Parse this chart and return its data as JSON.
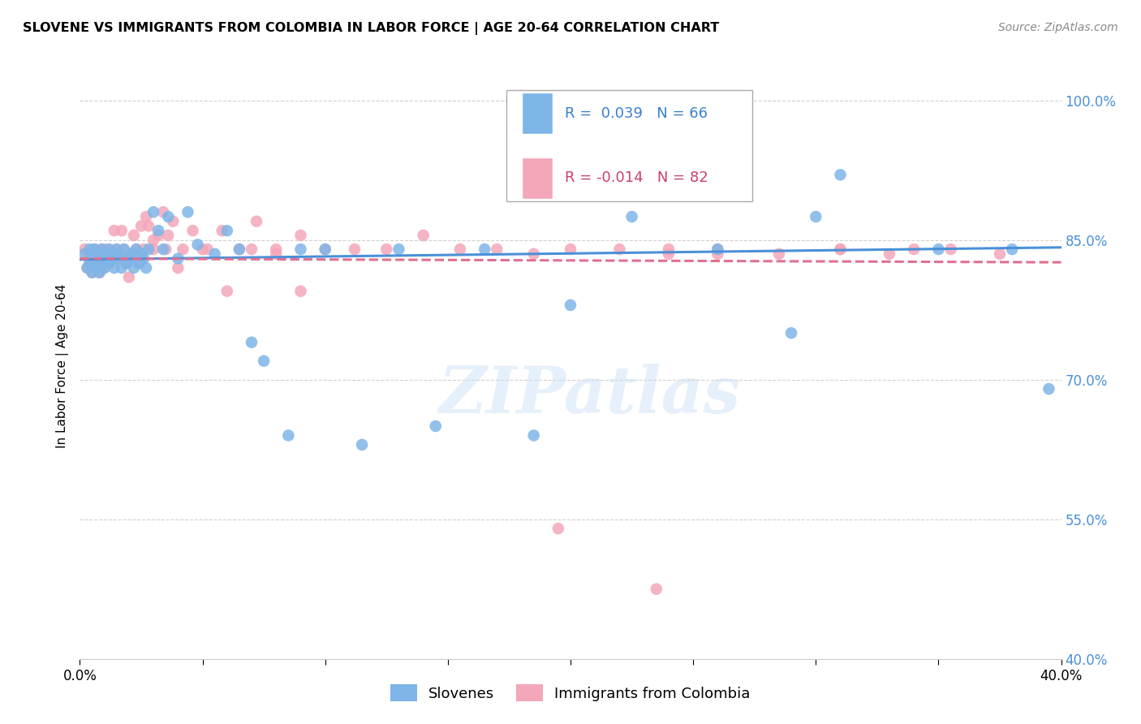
{
  "title": "SLOVENE VS IMMIGRANTS FROM COLOMBIA IN LABOR FORCE | AGE 20-64 CORRELATION CHART",
  "source": "Source: ZipAtlas.com",
  "ylabel": "In Labor Force | Age 20-64",
  "xmin": 0.0,
  "xmax": 0.4,
  "ymin": 0.4,
  "ymax": 1.03,
  "grid_color": "#cccccc",
  "background_color": "#ffffff",
  "legend_R1": "0.039",
  "legend_N1": "66",
  "legend_R2": "-0.014",
  "legend_N2": "82",
  "blue_color": "#7eb5e8",
  "pink_color": "#f4a7b9",
  "blue_line_color": "#4a90d9",
  "pink_line_color": "#e07090",
  "blue_trend_y0": 0.829,
  "blue_trend_y1": 0.842,
  "pink_trend_y0": 0.83,
  "pink_trend_y1": 0.826,
  "blue_scatter_x": [
    0.002,
    0.003,
    0.004,
    0.004,
    0.005,
    0.005,
    0.006,
    0.006,
    0.007,
    0.007,
    0.008,
    0.008,
    0.009,
    0.009,
    0.01,
    0.01,
    0.011,
    0.012,
    0.012,
    0.013,
    0.013,
    0.014,
    0.015,
    0.015,
    0.016,
    0.017,
    0.018,
    0.019,
    0.02,
    0.021,
    0.022,
    0.023,
    0.024,
    0.025,
    0.026,
    0.027,
    0.028,
    0.03,
    0.032,
    0.034,
    0.036,
    0.04,
    0.044,
    0.048,
    0.055,
    0.06,
    0.065,
    0.07,
    0.075,
    0.085,
    0.09,
    0.1,
    0.115,
    0.13,
    0.145,
    0.165,
    0.185,
    0.2,
    0.225,
    0.26,
    0.29,
    0.31,
    0.35,
    0.38,
    0.395,
    0.3
  ],
  "blue_scatter_y": [
    0.835,
    0.82,
    0.84,
    0.825,
    0.83,
    0.815,
    0.84,
    0.825,
    0.835,
    0.82,
    0.83,
    0.815,
    0.84,
    0.825,
    0.83,
    0.82,
    0.835,
    0.84,
    0.825,
    0.83,
    0.835,
    0.82,
    0.84,
    0.83,
    0.835,
    0.82,
    0.84,
    0.825,
    0.83,
    0.835,
    0.82,
    0.84,
    0.825,
    0.835,
    0.83,
    0.82,
    0.84,
    0.88,
    0.86,
    0.84,
    0.875,
    0.83,
    0.88,
    0.845,
    0.835,
    0.86,
    0.84,
    0.74,
    0.72,
    0.64,
    0.84,
    0.84,
    0.63,
    0.84,
    0.65,
    0.84,
    0.64,
    0.78,
    0.875,
    0.84,
    0.75,
    0.92,
    0.84,
    0.84,
    0.69,
    0.875
  ],
  "pink_scatter_x": [
    0.002,
    0.003,
    0.004,
    0.004,
    0.005,
    0.005,
    0.006,
    0.006,
    0.007,
    0.007,
    0.008,
    0.008,
    0.009,
    0.009,
    0.01,
    0.01,
    0.011,
    0.011,
    0.012,
    0.013,
    0.013,
    0.014,
    0.015,
    0.015,
    0.016,
    0.017,
    0.018,
    0.019,
    0.02,
    0.021,
    0.022,
    0.023,
    0.024,
    0.025,
    0.026,
    0.027,
    0.028,
    0.03,
    0.032,
    0.034,
    0.036,
    0.038,
    0.042,
    0.046,
    0.052,
    0.058,
    0.065,
    0.072,
    0.08,
    0.09,
    0.1,
    0.112,
    0.125,
    0.14,
    0.155,
    0.17,
    0.185,
    0.2,
    0.22,
    0.24,
    0.26,
    0.285,
    0.31,
    0.33,
    0.355,
    0.375,
    0.24,
    0.26,
    0.31,
    0.34,
    0.02,
    0.025,
    0.03,
    0.035,
    0.04,
    0.05,
    0.06,
    0.07,
    0.08,
    0.09,
    0.195,
    0.235
  ],
  "pink_scatter_y": [
    0.84,
    0.82,
    0.835,
    0.825,
    0.83,
    0.815,
    0.84,
    0.825,
    0.835,
    0.82,
    0.83,
    0.815,
    0.84,
    0.825,
    0.83,
    0.82,
    0.835,
    0.84,
    0.825,
    0.83,
    0.835,
    0.86,
    0.84,
    0.83,
    0.835,
    0.86,
    0.84,
    0.825,
    0.83,
    0.835,
    0.855,
    0.84,
    0.825,
    0.865,
    0.84,
    0.875,
    0.865,
    0.84,
    0.855,
    0.88,
    0.855,
    0.87,
    0.84,
    0.86,
    0.84,
    0.86,
    0.84,
    0.87,
    0.835,
    0.855,
    0.84,
    0.84,
    0.84,
    0.855,
    0.84,
    0.84,
    0.835,
    0.84,
    0.84,
    0.835,
    0.84,
    0.835,
    0.84,
    0.835,
    0.84,
    0.835,
    0.84,
    0.835,
    0.84,
    0.84,
    0.81,
    0.83,
    0.85,
    0.84,
    0.82,
    0.84,
    0.795,
    0.84,
    0.84,
    0.795,
    0.54,
    0.475
  ]
}
